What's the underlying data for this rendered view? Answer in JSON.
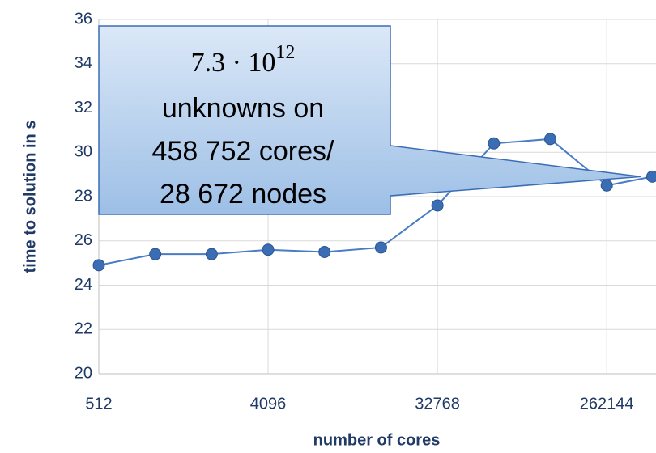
{
  "chart_data": {
    "type": "line",
    "x_label": "number of cores",
    "y_label": "time to solution in s",
    "x": [
      512,
      1024,
      2048,
      4096,
      8192,
      16384,
      32768,
      65536,
      131072,
      262144,
      458752
    ],
    "series": [
      {
        "name": "time to solution",
        "color": "#4a7cc4",
        "marker_color": "#3b6db5",
        "values": [
          24.9,
          25.4,
          25.4,
          25.6,
          25.5,
          25.7,
          27.6,
          30.4,
          30.6,
          28.5,
          28.9
        ]
      }
    ],
    "xlog": true,
    "xlim": [
      512,
      480000
    ],
    "xticks": [
      512,
      4096,
      32768,
      262144
    ],
    "ylim": [
      20,
      36
    ],
    "yticks": [
      20,
      22,
      24,
      26,
      28,
      30,
      32,
      34,
      36
    ],
    "grid": true,
    "annotation": {
      "base": "7.3 · 10",
      "exponent": "12",
      "lines": [
        "unknowns on",
        "458 752 cores/",
        "28 672 nodes"
      ],
      "x": 458752,
      "y": 28.9
    }
  }
}
